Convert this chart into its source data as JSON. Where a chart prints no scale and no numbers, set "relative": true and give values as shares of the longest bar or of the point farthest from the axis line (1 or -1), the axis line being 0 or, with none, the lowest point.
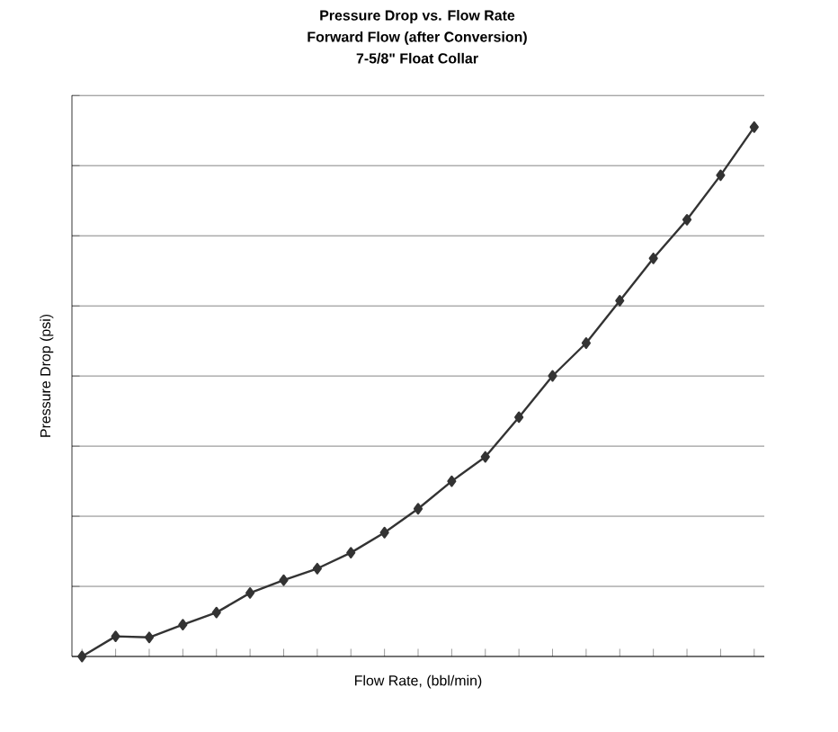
{
  "chart_data": {
    "type": "line",
    "title": "Pressure Drop vs. Flow Rate",
    "subtitle": "Forward Flow (after Conversion)",
    "annotations": [
      "7-5/8\" Float Collar"
    ],
    "xlabel": "Flow Rate, (bbl/min)",
    "ylabel": "Pressure Drop (psi)",
    "relative": true,
    "categories": [
      null,
      null,
      null,
      null,
      null,
      null,
      null,
      null,
      null,
      null,
      null,
      null,
      null,
      null,
      null,
      null,
      null,
      null,
      null,
      null,
      null
    ],
    "series": [
      {
        "color": "#333333",
        "values": [
          0,
          0.038,
          0.036,
          0.06,
          0.083,
          0.12,
          0.144,
          0.166,
          0.196,
          0.234,
          0.279,
          0.331,
          0.377,
          0.452,
          0.53,
          0.592,
          0.672,
          0.752,
          0.825,
          0.909,
          1
        ]
      }
    ],
    "grid": "y",
    "marker": "diamond",
    "line_style": "solid"
  }
}
